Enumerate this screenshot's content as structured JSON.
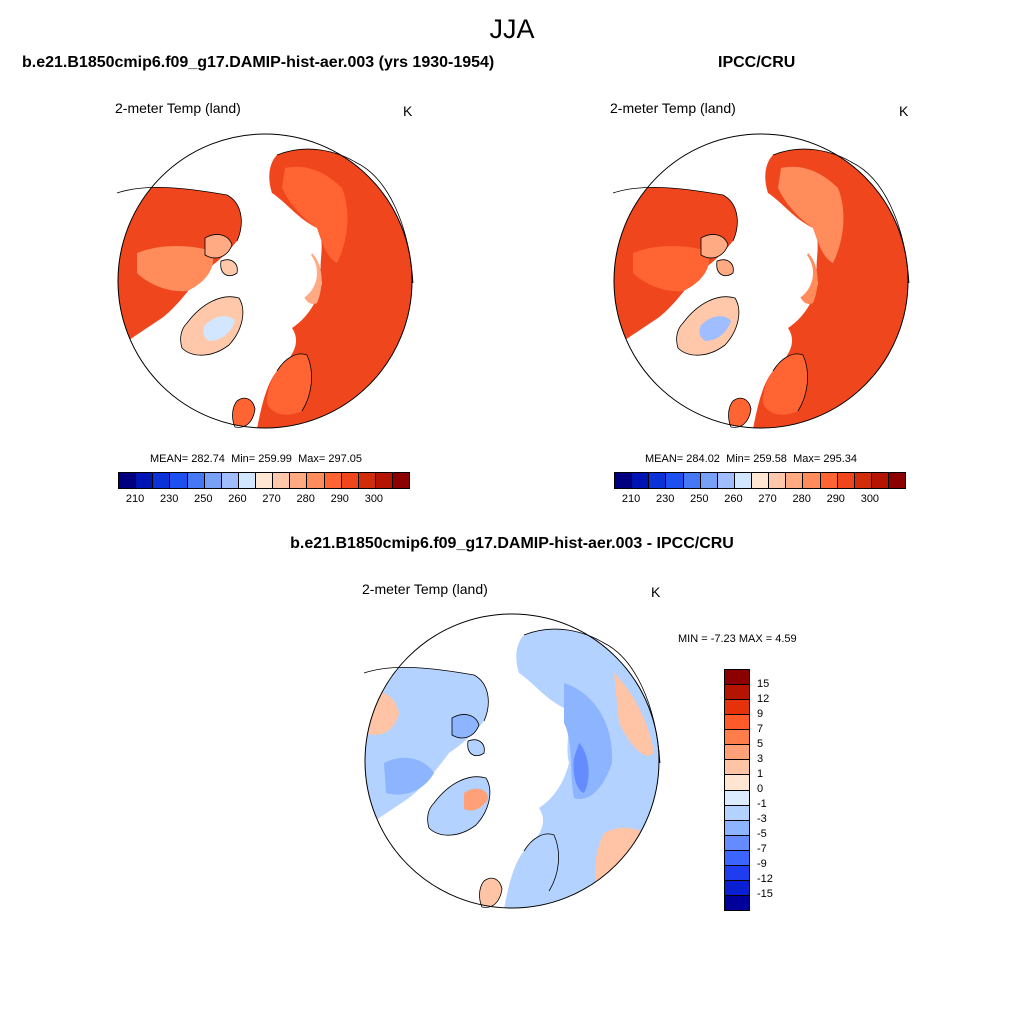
{
  "season": "JJA",
  "panels": {
    "model": {
      "title": "b.e21.B1850cmip6.f09_g17.DAMIP-hist-aer.003 (yrs 1930-1954)",
      "variable": "2-meter Temp (land)",
      "units": "K",
      "stats": {
        "mean_label": "MEAN=",
        "mean": "282.74",
        "min_label": "Min=",
        "min": "259.99",
        "max_label": "Max=",
        "max": "297.05"
      }
    },
    "obs": {
      "title": "IPCC/CRU",
      "variable": "2-meter Temp (land)",
      "units": "K",
      "stats": {
        "mean_label": "MEAN=",
        "mean": "284.02",
        "min_label": "Min=",
        "min": "259.58",
        "max_label": "Max=",
        "max": "295.34"
      }
    },
    "diff": {
      "title": "b.e21.B1850cmip6.f09_g17.DAMIP-hist-aer.003 - IPCC/CRU",
      "variable": "2-meter Temp (land)",
      "units": "K",
      "range_text": "MIN =  -7.23 MAX =   4.59"
    }
  },
  "colorbar_abs": {
    "tick_labels": [
      "210",
      "230",
      "250",
      "260",
      "270",
      "280",
      "290",
      "300"
    ],
    "colors": [
      "#00007f",
      "#0014b3",
      "#0a32d8",
      "#1e50f0",
      "#4678f5",
      "#78a0f5",
      "#a0beff",
      "#d2e6ff",
      "#ffe6d2",
      "#ffc8aa",
      "#ffaa82",
      "#ff8c5a",
      "#ff6432",
      "#f0461e",
      "#d22d0a",
      "#b41400",
      "#8c0000"
    ]
  },
  "colorbar_diff": {
    "tick_labels": [
      "15",
      "12",
      "9",
      "7",
      "5",
      "3",
      "1",
      "0",
      "-1",
      "-3",
      "-5",
      "-7",
      "-9",
      "-12",
      "-15"
    ],
    "colors": [
      "#8c0000",
      "#b41400",
      "#e6320a",
      "#ff5a28",
      "#ff7d4b",
      "#ffa078",
      "#ffc3a5",
      "#ffe6d2",
      "#dcebff",
      "#b4d2ff",
      "#8cb4ff",
      "#648cff",
      "#3c64ff",
      "#1e3cf0",
      "#0a1ed2",
      "#00009b"
    ]
  }
}
